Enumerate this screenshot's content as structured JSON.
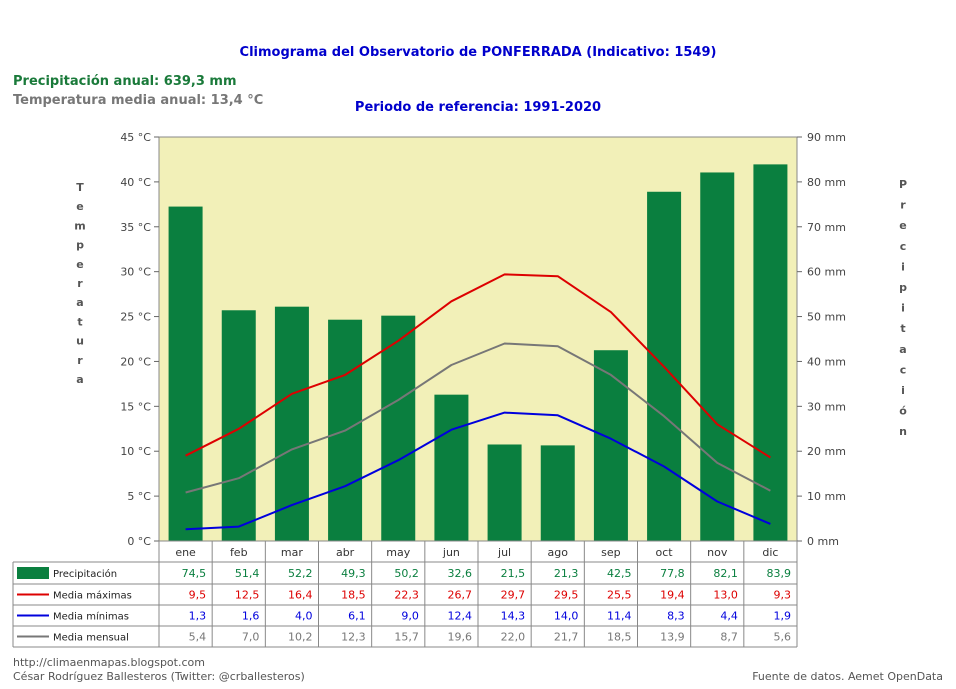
{
  "header": {
    "title": "Climograma del Observatorio de PONFERRADA (Indicativo: 1549)",
    "subtitle": "Periodo de referencia: 1991-2020",
    "annual_precip": "Precipitación anual: 639,3 mm",
    "annual_temp": "Temperatura media anual: 13,4 °C"
  },
  "footer": {
    "url": "http://climaenmapas.blogspot.com",
    "author": "César Rodríguez Ballesteros (Twitter: @crballesteros)",
    "source": "Fuente de datos. Aemet OpenData"
  },
  "chart_data": {
    "type": "bar",
    "categories": [
      "ene",
      "feb",
      "mar",
      "abr",
      "may",
      "jun",
      "jul",
      "ago",
      "sep",
      "oct",
      "nov",
      "dic"
    ],
    "ylabel_left": "Temperatura",
    "ylabel_right": "Precipitación",
    "ylim_left": [
      0,
      45
    ],
    "ylim_right": [
      0,
      90
    ],
    "y_ticks_left": [
      "0 °C",
      "5 °C",
      "10 °C",
      "15 °C",
      "20 °C",
      "25 °C",
      "30 °C",
      "35 °C",
      "40 °C",
      "45 °C"
    ],
    "y_ticks_right": [
      "0 mm",
      "10 mm",
      "20 mm",
      "30 mm",
      "40 mm",
      "50 mm",
      "60 mm",
      "70 mm",
      "80 mm",
      "90 mm"
    ],
    "series": [
      {
        "name": "Precipitación",
        "kind": "bar",
        "axis": "right",
        "color": "#0a7f3f",
        "values": [
          74.5,
          51.4,
          52.2,
          49.3,
          50.2,
          32.6,
          21.5,
          21.3,
          42.5,
          77.8,
          82.1,
          83.9
        ],
        "labels": [
          "74,5",
          "51,4",
          "52,2",
          "49,3",
          "50,2",
          "32,6",
          "21,5",
          "21,3",
          "42,5",
          "77,8",
          "82,1",
          "83,9"
        ]
      },
      {
        "name": "Media máximas",
        "kind": "line",
        "axis": "left",
        "color": "#dd0000",
        "values": [
          9.5,
          12.5,
          16.4,
          18.5,
          22.3,
          26.7,
          29.7,
          29.5,
          25.5,
          19.4,
          13.0,
          9.3
        ],
        "labels": [
          "9,5",
          "12,5",
          "16,4",
          "18,5",
          "22,3",
          "26,7",
          "29,7",
          "29,5",
          "25,5",
          "19,4",
          "13,0",
          "9,3"
        ]
      },
      {
        "name": "Media mínimas",
        "kind": "line",
        "axis": "left",
        "color": "#0000dd",
        "values": [
          1.3,
          1.6,
          4.0,
          6.1,
          9.0,
          12.4,
          14.3,
          14.0,
          11.4,
          8.3,
          4.4,
          1.9
        ],
        "labels": [
          "1,3",
          "1,6",
          "4,0",
          "6,1",
          "9,0",
          "12,4",
          "14,3",
          "14,0",
          "11,4",
          "8,3",
          "4,4",
          "1,9"
        ]
      },
      {
        "name": "Media mensual",
        "kind": "line",
        "axis": "left",
        "color": "#777777",
        "values": [
          5.4,
          7.0,
          10.2,
          12.3,
          15.7,
          19.6,
          22.0,
          21.7,
          18.5,
          13.9,
          8.7,
          5.6
        ],
        "labels": [
          "5,4",
          "7,0",
          "10,2",
          "12,3",
          "15,7",
          "19,6",
          "22,0",
          "21,7",
          "18,5",
          "13,9",
          "8,7",
          "5,6"
        ]
      }
    ],
    "plot_background": "#f2f0b8",
    "grid": false,
    "legend": "table-below"
  }
}
